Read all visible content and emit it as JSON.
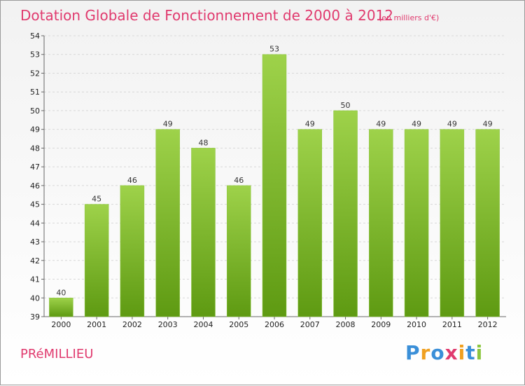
{
  "chart_data": {
    "type": "bar",
    "title": "Dotation Globale de Fonctionnement de 2000 à 2012",
    "unit": "(en milliers d'€)",
    "categories": [
      "2000",
      "2001",
      "2002",
      "2003",
      "2004",
      "2005",
      "2006",
      "2007",
      "2008",
      "2009",
      "2010",
      "2011",
      "2012"
    ],
    "values": [
      40,
      45,
      46,
      49,
      48,
      46,
      53,
      49,
      50,
      49,
      49,
      49,
      49
    ],
    "ylim": [
      39,
      54
    ],
    "yticks": [
      39,
      40,
      41,
      42,
      43,
      44,
      45,
      46,
      47,
      48,
      49,
      50,
      51,
      52,
      53,
      54
    ],
    "grid": true,
    "bar_color": "#7fbf2a",
    "bar_color_dark": "#5e9a12"
  },
  "commune": "PRéMILLIEU",
  "logo": {
    "letters": [
      "P",
      "r",
      "o",
      "x",
      "i",
      "t",
      "i"
    ],
    "colors": [
      "#3a8fd8",
      "#f0a020",
      "#3a8fd8",
      "#e03a6e",
      "#f0a020",
      "#3a8fd8",
      "#8cc63f"
    ]
  }
}
